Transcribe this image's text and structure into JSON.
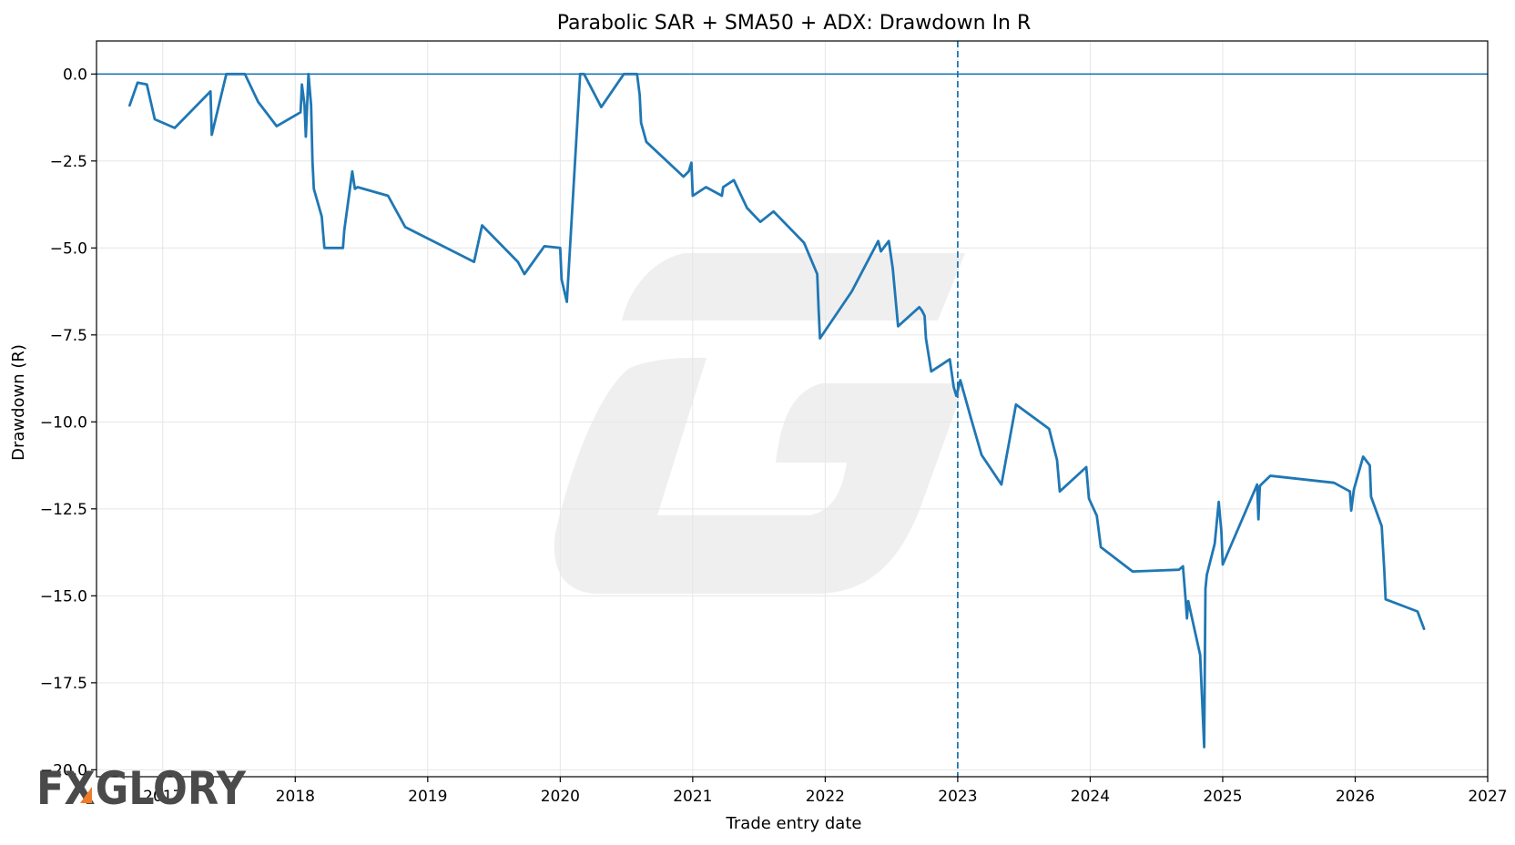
{
  "chart_data": {
    "type": "line",
    "title": "Parabolic SAR + SMA50 + ADX: Drawdown In R",
    "xlabel": "Trade entry date",
    "ylabel": "Drawdown (R)",
    "xlim": [
      2016.5,
      2027.0
    ],
    "ylim": [
      -20.2,
      0.95
    ],
    "x_ticks": [
      2017,
      2018,
      2019,
      2020,
      2021,
      2022,
      2023,
      2024,
      2025,
      2026,
      2027
    ],
    "x_tick_labels": [
      "2017",
      "2018",
      "2019",
      "2020",
      "2021",
      "2022",
      "2023",
      "2024",
      "2025",
      "2026",
      "2027"
    ],
    "y_ticks": [
      0,
      -2.5,
      -5,
      -7.5,
      -10,
      -12.5,
      -15,
      -17.5,
      -20
    ],
    "y_tick_labels": [
      "0.0",
      "−2.5",
      "−5.0",
      "−7.5",
      "−10.0",
      "−12.5",
      "−15.0",
      "−17.5",
      "−20.0"
    ],
    "grid": true,
    "reference_lines": {
      "horizontal_y": 0,
      "vertical_x": 2023.0
    },
    "series": [
      {
        "x": [
          2016.75,
          2016.81,
          2016.88,
          2016.94,
          2017.09,
          2017.36,
          2017.37,
          2017.48,
          2017.62,
          2017.72,
          2017.86,
          2018.04,
          2018.05,
          2018.07,
          2018.08,
          2018.1,
          2018.12,
          2018.13,
          2018.14,
          2018.2,
          2018.22,
          2018.36,
          2018.37,
          2018.43,
          2018.45,
          2018.47,
          2018.7,
          2018.83,
          2019.35,
          2019.41,
          2019.68,
          2019.73,
          2019.88,
          2020.0,
          2020.01,
          2020.05,
          2020.15,
          2020.18,
          2020.31,
          2020.48,
          2020.58,
          2020.6,
          2020.61,
          2020.65,
          2020.93,
          2020.97,
          2020.99,
          2021.0,
          2021.1,
          2021.22,
          2021.23,
          2021.31,
          2021.41,
          2021.51,
          2021.61,
          2021.84,
          2021.94,
          2021.95,
          2021.96,
          2022.2,
          2022.4,
          2022.42,
          2022.48,
          2022.51,
          2022.55,
          2022.71,
          2022.73,
          2022.75,
          2022.76,
          2022.8,
          2022.94,
          2022.97,
          2022.99,
          2023.02,
          2023.1,
          2023.18,
          2023.33,
          2023.44,
          2023.69,
          2023.75,
          2023.77,
          2023.97,
          2023.99,
          2024.05,
          2024.08,
          2024.32,
          2024.67,
          2024.7,
          2024.72,
          2024.73,
          2024.74,
          2024.83,
          2024.86,
          2024.87,
          2024.88,
          2024.94,
          2024.97,
          2024.99,
          2025.0,
          2025.26,
          2025.27,
          2025.28,
          2025.29,
          2025.36,
          2025.84,
          2025.96,
          2025.97,
          2025.99,
          2026.06,
          2026.11,
          2026.12,
          2026.2,
          2026.22,
          2026.23,
          2026.47,
          2026.52
        ],
        "y": [
          -0.9,
          -0.25,
          -0.3,
          -1.3,
          -1.55,
          -0.5,
          -1.75,
          0.0,
          0.0,
          -0.8,
          -1.5,
          -1.1,
          -0.3,
          -0.9,
          -1.8,
          0.0,
          -0.9,
          -2.5,
          -3.3,
          -4.1,
          -5.0,
          -5.0,
          -4.5,
          -2.8,
          -3.3,
          -3.25,
          -3.5,
          -4.4,
          -5.4,
          -4.35,
          -5.4,
          -5.75,
          -4.95,
          -5.0,
          -5.9,
          -6.55,
          0.0,
          0.0,
          -0.95,
          0.0,
          0.0,
          -0.6,
          -1.4,
          -1.95,
          -2.95,
          -2.8,
          -2.55,
          -3.5,
          -3.25,
          -3.5,
          -3.25,
          -3.05,
          -3.85,
          -4.25,
          -3.95,
          -4.85,
          -5.75,
          -6.75,
          -7.6,
          -6.25,
          -4.8,
          -5.1,
          -4.8,
          -5.6,
          -7.25,
          -6.7,
          -6.8,
          -6.95,
          -7.6,
          -8.55,
          -8.2,
          -9.0,
          -9.25,
          -8.8,
          -9.9,
          -10.95,
          -11.8,
          -9.5,
          -10.2,
          -11.1,
          -12.0,
          -11.3,
          -12.2,
          -12.7,
          -13.6,
          -14.3,
          -14.25,
          -14.15,
          -15.1,
          -15.65,
          -15.15,
          -16.7,
          -19.35,
          -14.8,
          -14.4,
          -13.5,
          -12.3,
          -13.15,
          -14.1,
          -11.8,
          -12.8,
          -11.85,
          -11.8,
          -11.55,
          -11.75,
          -12.0,
          -12.55,
          -11.95,
          -11.0,
          -11.25,
          -12.15,
          -13.0,
          -14.3,
          -15.1,
          -15.45,
          -15.95
        ]
      }
    ]
  },
  "watermark": {
    "logo_text": "FXGLORY",
    "accent_color": "#f07c2a"
  },
  "colors": {
    "series": "#1f77b4",
    "grid": "#e6e6e6"
  }
}
